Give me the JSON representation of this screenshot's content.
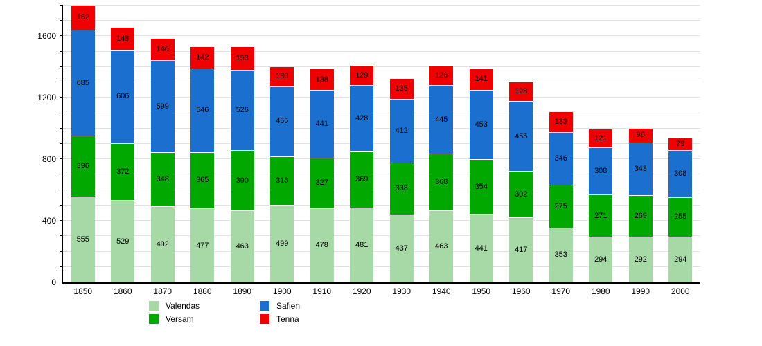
{
  "chart_data": {
    "type": "bar",
    "stacked": true,
    "title": "",
    "xlabel": "",
    "ylabel": "",
    "categories": [
      "1850",
      "1860",
      "1870",
      "1880",
      "1890",
      "1900",
      "1910",
      "1920",
      "1930",
      "1940",
      "1950",
      "1960",
      "1970",
      "1980",
      "1990",
      "2000"
    ],
    "series": [
      {
        "name": "Valendas",
        "color": "#a6d9a6",
        "values": [
          555,
          529,
          492,
          477,
          463,
          499,
          478,
          481,
          437,
          463,
          441,
          417,
          353,
          294,
          292,
          294
        ]
      },
      {
        "name": "Versam",
        "color": "#00a800",
        "values": [
          396,
          372,
          348,
          365,
          390,
          316,
          327,
          369,
          338,
          368,
          354,
          302,
          275,
          271,
          269,
          255
        ]
      },
      {
        "name": "Safien",
        "color": "#1b6fce",
        "values": [
          685,
          606,
          599,
          546,
          526,
          455,
          441,
          428,
          412,
          445,
          453,
          455,
          346,
          308,
          343,
          308
        ]
      },
      {
        "name": "Tenna",
        "color": "#f00000",
        "values": [
          162,
          148,
          146,
          142,
          153,
          130,
          138,
          129,
          135,
          126,
          141,
          128,
          133,
          121,
          96,
          79
        ]
      }
    ],
    "ylim": [
      0,
      1800
    ],
    "y_major_ticks": [
      0,
      400,
      800,
      1200,
      1600
    ],
    "y_minor_step": 100,
    "grid": true,
    "gridline_color": "#e2e2e2",
    "legend_position": "bottom",
    "legend_order_column_major_rows": 2
  }
}
